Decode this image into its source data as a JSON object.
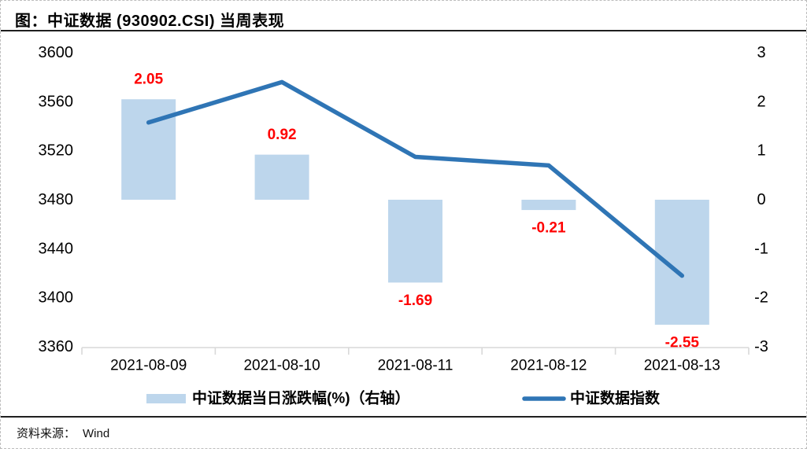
{
  "header": {
    "title": "图：中证数据 (930902.CSI) 当周表现"
  },
  "footer": {
    "source_label": "资料来源：",
    "source_value": "Wind"
  },
  "chart_data": {
    "type": "combo",
    "title": "中证数据 (930902.CSI) 当周表现",
    "categories": [
      "2021-08-09",
      "2021-08-10",
      "2021-08-11",
      "2021-08-12",
      "2021-08-13"
    ],
    "series": [
      {
        "name": "中证数据当日涨跌幅(%)（右轴）",
        "type": "bar",
        "axis": "right",
        "values": [
          2.05,
          0.92,
          -1.69,
          -0.21,
          -2.55
        ],
        "color": "#BDD6EC",
        "value_label_color": "#FF0000"
      },
      {
        "name": "中证数据指数",
        "type": "line",
        "axis": "left",
        "values": [
          3543,
          3576,
          3515,
          3508,
          3418
        ],
        "color": "#2F75B5"
      }
    ],
    "left_axis": {
      "min": 3360,
      "max": 3600,
      "ticks": [
        3600,
        3560,
        3520,
        3480,
        3440,
        3400,
        3360
      ]
    },
    "right_axis": {
      "min": -3,
      "max": 3,
      "ticks": [
        3,
        2,
        1,
        0,
        -1,
        -2,
        -3
      ]
    },
    "legend_position": "bottom",
    "grid": false,
    "axis_line_color": "#D9D9D9",
    "text_color": "#000000"
  }
}
